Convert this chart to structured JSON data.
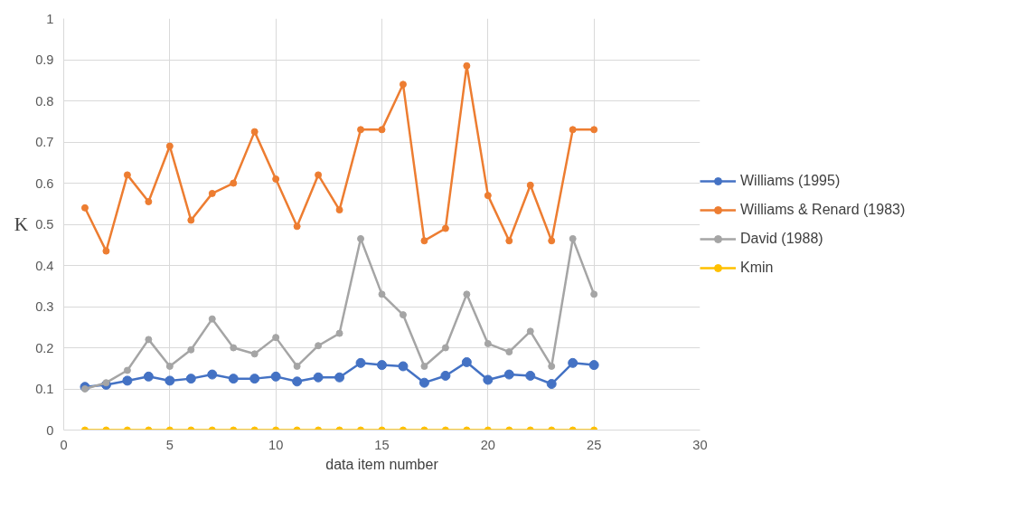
{
  "chart_data": {
    "type": "line",
    "xlabel": "data item number",
    "ylabel": "K",
    "x": [
      1,
      2,
      3,
      4,
      5,
      6,
      7,
      8,
      9,
      10,
      11,
      12,
      13,
      14,
      15,
      16,
      17,
      18,
      19,
      20,
      21,
      22,
      23,
      24,
      25
    ],
    "xlim": [
      0,
      30
    ],
    "xticks": [
      0,
      5,
      10,
      15,
      20,
      25,
      30
    ],
    "ylim": [
      0,
      1
    ],
    "yticks": [
      0,
      0.1,
      0.2,
      0.3,
      0.4,
      0.5,
      0.6,
      0.7,
      0.8,
      0.9,
      1
    ],
    "grid": true,
    "legend": "right",
    "marker": "circle",
    "line_style": "solid",
    "series": [
      {
        "name": "Williams (1995)",
        "color": "#4472c4",
        "values": [
          0.105,
          0.11,
          0.12,
          0.13,
          0.12,
          0.125,
          0.135,
          0.125,
          0.125,
          0.13,
          0.118,
          0.128,
          0.128,
          0.163,
          0.158,
          0.155,
          0.115,
          0.132,
          0.165,
          0.122,
          0.135,
          0.132,
          0.112,
          0.163,
          0.158
        ]
      },
      {
        "name": "Williams & Renard (1983)",
        "color": "#ed7d31",
        "values": [
          0.54,
          0.435,
          0.62,
          0.555,
          0.69,
          0.51,
          0.575,
          0.6,
          0.725,
          0.61,
          0.495,
          0.62,
          0.535,
          0.73,
          0.73,
          0.84,
          0.46,
          0.49,
          0.885,
          0.57,
          0.46,
          0.595,
          0.46,
          0.73,
          0.73
        ]
      },
      {
        "name": "David (1988)",
        "color": "#a5a5a5",
        "values": [
          0.1,
          0.115,
          0.145,
          0.22,
          0.155,
          0.195,
          0.27,
          0.2,
          0.185,
          0.225,
          0.155,
          0.205,
          0.235,
          0.465,
          0.33,
          0.28,
          0.155,
          0.2,
          0.33,
          0.21,
          0.19,
          0.24,
          0.155,
          0.465,
          0.33
        ]
      },
      {
        "name": "Kmin",
        "color": "#ffc000",
        "values": [
          0,
          0,
          0,
          0,
          0,
          0,
          0,
          0,
          0,
          0,
          0,
          0,
          0,
          0,
          0,
          0,
          0,
          0,
          0,
          0,
          0,
          0,
          0,
          0,
          0
        ]
      }
    ]
  }
}
